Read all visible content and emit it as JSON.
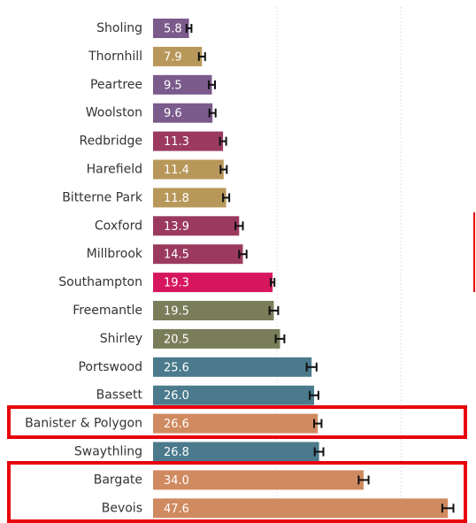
{
  "chart_data": {
    "type": "bar",
    "orientation": "horizontal",
    "categories": [
      "Sholing",
      "Thornhill",
      "Peartree",
      "Woolston",
      "Redbridge",
      "Harefield",
      "Bitterne Park",
      "Coxford",
      "Millbrook",
      "Southampton",
      "Freemantle",
      "Shirley",
      "Portswood",
      "Bassett",
      "Banister & Polygon",
      "Swaythling",
      "Bargate",
      "Bevois"
    ],
    "values": [
      5.8,
      7.9,
      9.5,
      9.6,
      11.3,
      11.4,
      11.8,
      13.9,
      14.5,
      19.3,
      19.5,
      20.5,
      25.6,
      26,
      26.6,
      26.8,
      34,
      47.6
    ],
    "value_labels": [
      "5.8",
      "7.9",
      "9.5",
      "9.6",
      "11.3",
      "11.4",
      "11.8",
      "13.9",
      "14.5",
      "19.3",
      "19.5",
      "20.5",
      "25.6",
      "26.0",
      "26.6",
      "26.8",
      "34.0",
      "47.6"
    ],
    "errors": [
      0.4,
      0.5,
      0.5,
      0.5,
      0.5,
      0.5,
      0.5,
      0.6,
      0.6,
      0.3,
      0.7,
      0.7,
      0.8,
      0.7,
      0.6,
      0.7,
      0.8,
      0.9
    ],
    "colors": [
      "#7b5a8c",
      "#b8985a",
      "#7b5a8c",
      "#7b5a8c",
      "#9b3a5e",
      "#b8985a",
      "#b8985a",
      "#9b3a5e",
      "#9b3a5e",
      "#d6175e",
      "#7a7d5a",
      "#7a7d5a",
      "#4a7a8c",
      "#4a7a8c",
      "#d08a60",
      "#4a7a8c",
      "#d08a60",
      "#d08a60"
    ],
    "xlim": [
      0,
      52
    ],
    "gridlines": [
      20,
      40
    ]
  }
}
